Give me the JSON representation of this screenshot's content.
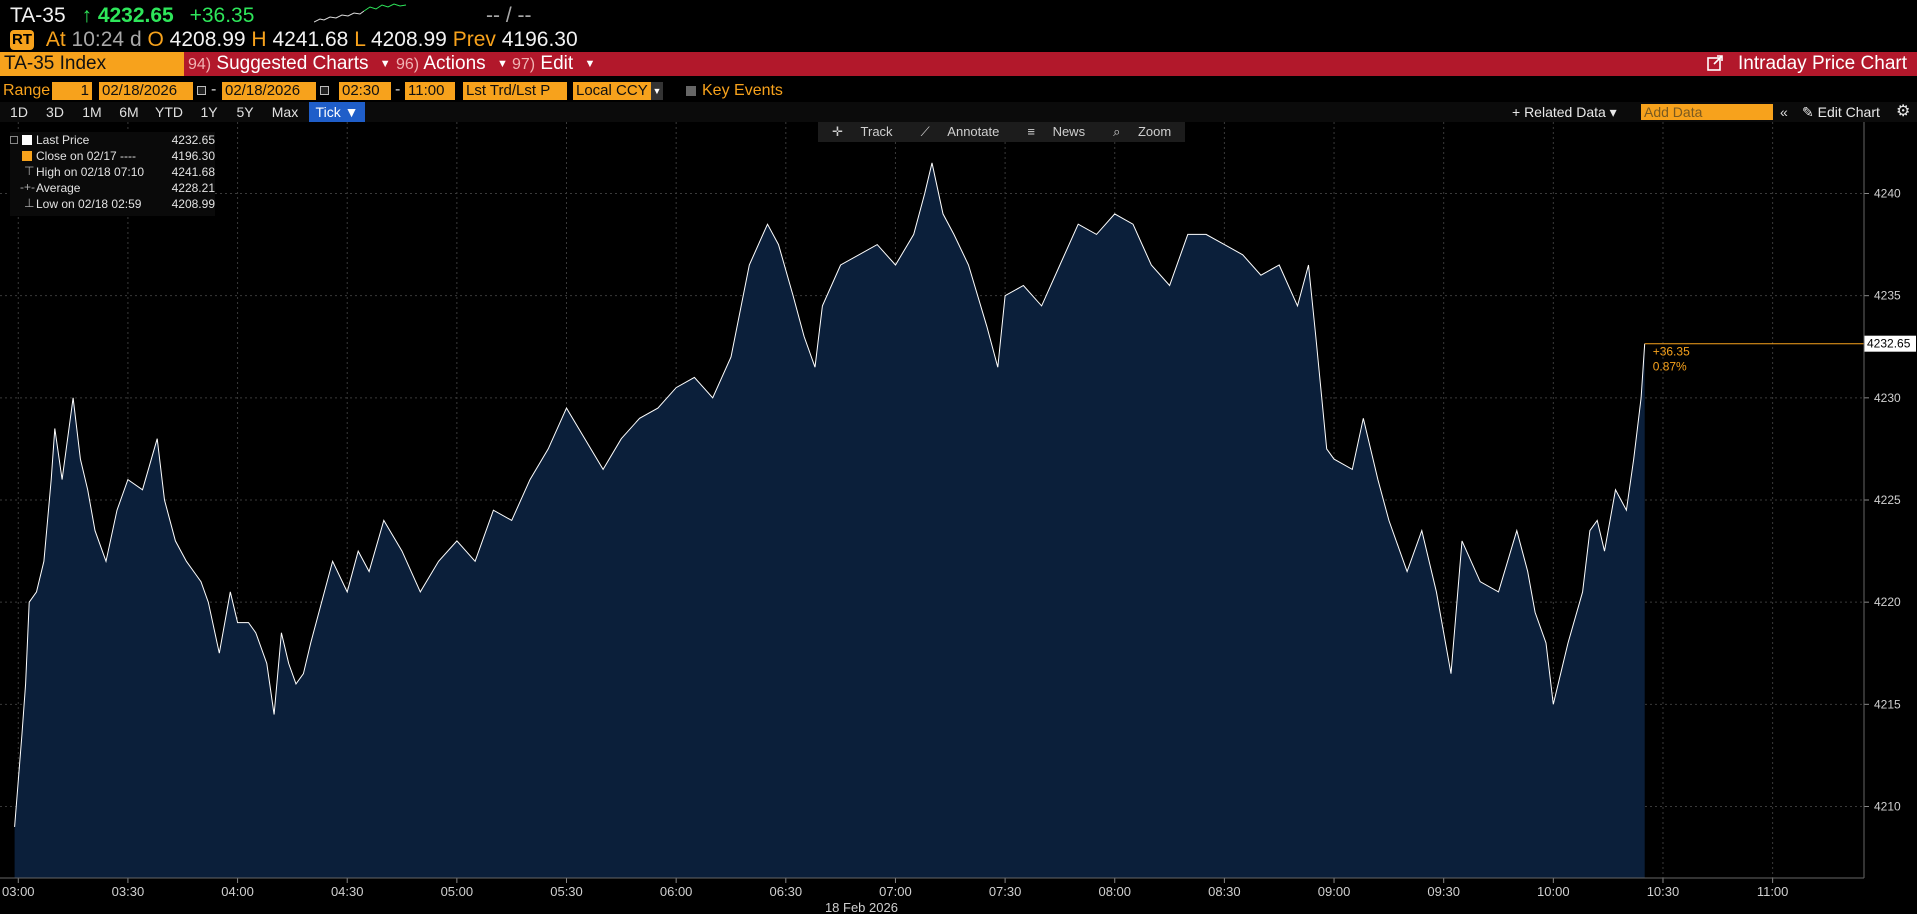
{
  "quote": {
    "ticker": "TA-35",
    "arrow": "↑",
    "last": "4232.65",
    "change": "+36.35",
    "bid_ask": "-- / --",
    "rt_badge": "RT",
    "at_label": "At",
    "time": "10:24",
    "d_label": "d",
    "open_label": "O",
    "open": "4208.99",
    "high_label": "H",
    "high": "4241.68",
    "low_label": "L",
    "low": "4208.99",
    "prev_label": "Prev",
    "prev": "4196.30"
  },
  "menubar": {
    "security": "TA-35 Index",
    "items": [
      {
        "num": "94)",
        "label": "Suggested Charts"
      },
      {
        "num": "96)",
        "label": "Actions"
      },
      {
        "num": "97)",
        "label": "Edit"
      }
    ],
    "title": "Intraday Price Chart"
  },
  "params": {
    "range_label": "Range",
    "range_value": "1",
    "start_date": "02/18/2026",
    "end_date": "02/18/2026",
    "start_time": "02:30",
    "end_time": "11:00",
    "price_type": "Lst Trd/Lst P",
    "currency": "Local CCY",
    "key_events": "Key Events"
  },
  "periods": [
    "1D",
    "3D",
    "1M",
    "6M",
    "YTD",
    "1Y",
    "5Y",
    "Max",
    "Tick ▼"
  ],
  "toolbar_right": {
    "related": "+ Related Data ▾",
    "add_data_placeholder": "Add Data",
    "edit_chart": "Edit Chart"
  },
  "chart_tools": [
    "Track",
    "Annotate",
    "News",
    "Zoom"
  ],
  "legend": [
    {
      "label": "Last Price",
      "value": "4232.65",
      "color": "#ffffff"
    },
    {
      "label": "Close on 02/17 ----",
      "value": "4196.30",
      "color": "#f7a21c"
    },
    {
      "label": "High on 02/18 07:10",
      "value": "4241.68",
      "color": ""
    },
    {
      "label": "Average",
      "value": "4228.21",
      "color": ""
    },
    {
      "label": "Low on 02/18 02:59",
      "value": "4208.99",
      "color": ""
    }
  ],
  "chart_data": {
    "type": "area",
    "title": "",
    "xlabel": "18 Feb 2026",
    "ylabel": "",
    "x_range": [
      "02:55",
      "11:25"
    ],
    "ylim": [
      4206.5,
      4243.5
    ],
    "y_ticks": [
      4210,
      4215,
      4220,
      4225,
      4230,
      4235,
      4240
    ],
    "x_ticks": [
      "03:00",
      "03:30",
      "04:00",
      "04:30",
      "05:00",
      "05:30",
      "06:00",
      "06:30",
      "07:00",
      "07:30",
      "08:00",
      "08:30",
      "09:00",
      "09:30",
      "10:00",
      "10:30",
      "11:00"
    ],
    "grid": true,
    "line_color": "#ffffff",
    "fill_color": "#0b1f3a",
    "last_price_label": "4232.65",
    "change_label": "+36.35",
    "change_pct_label": "0.87%",
    "series": [
      {
        "x": [
          "02:59",
          "03:01",
          "03:02",
          "03:03",
          "03:05",
          "03:07",
          "03:09",
          "03:10",
          "03:12",
          "03:15",
          "03:17",
          "03:19",
          "03:21",
          "03:24",
          "03:27",
          "03:30",
          "03:34",
          "03:38",
          "03:40",
          "03:43",
          "03:46",
          "03:48",
          "03:50",
          "03:52",
          "03:55",
          "03:58",
          "04:00",
          "04:03",
          "04:05",
          "04:08",
          "04:10",
          "04:12",
          "04:14",
          "04:16",
          "04:18",
          "04:20",
          "04:23",
          "04:26",
          "04:30",
          "04:33",
          "04:36",
          "04:40",
          "04:45",
          "04:50",
          "04:55",
          "05:00",
          "05:05",
          "05:10",
          "05:15",
          "05:20",
          "05:25",
          "05:30",
          "05:35",
          "05:40",
          "05:45",
          "05:50",
          "05:55",
          "06:00",
          "06:05",
          "06:10",
          "06:15",
          "06:20",
          "06:25",
          "06:28",
          "06:32",
          "06:35",
          "06:38",
          "06:40",
          "06:45",
          "06:50",
          "06:55",
          "07:00",
          "07:05",
          "07:08",
          "07:10",
          "07:13",
          "07:16",
          "07:20",
          "07:25",
          "07:28",
          "07:30",
          "07:35",
          "07:40",
          "07:45",
          "07:50",
          "07:55",
          "08:00",
          "08:05",
          "08:10",
          "08:15",
          "08:20",
          "08:25",
          "08:30",
          "08:35",
          "08:40",
          "08:45",
          "08:50",
          "08:53",
          "08:55",
          "08:58",
          "09:00",
          "09:05",
          "09:08",
          "09:12",
          "09:15",
          "09:20",
          "09:24",
          "09:28",
          "09:32",
          "09:35",
          "09:40",
          "09:45",
          "09:50",
          "09:53",
          "09:55",
          "09:58",
          "10:00",
          "10:04",
          "10:08",
          "10:10",
          "10:12",
          "10:14",
          "10:17",
          "10:20",
          "10:22",
          "10:24",
          "10:25"
        ],
        "y": [
          4209.0,
          4213.5,
          4216.0,
          4220.0,
          4220.5,
          4222.0,
          4226.0,
          4228.5,
          4226.0,
          4230.0,
          4227.0,
          4225.5,
          4223.5,
          4222.0,
          4224.5,
          4226.0,
          4225.5,
          4228.0,
          4225.0,
          4223.0,
          4222.0,
          4221.5,
          4221.0,
          4220.0,
          4217.5,
          4220.5,
          4219.0,
          4219.0,
          4218.5,
          4217.0,
          4214.5,
          4218.5,
          4217.0,
          4216.0,
          4216.5,
          4218.0,
          4220.0,
          4222.0,
          4220.5,
          4222.5,
          4221.5,
          4224.0,
          4222.5,
          4220.5,
          4222.0,
          4223.0,
          4222.0,
          4224.5,
          4224.0,
          4226.0,
          4227.5,
          4229.5,
          4228.0,
          4226.5,
          4228.0,
          4229.0,
          4229.5,
          4230.5,
          4231.0,
          4230.0,
          4232.0,
          4236.5,
          4238.5,
          4237.5,
          4235.0,
          4233.0,
          4231.5,
          4234.5,
          4236.5,
          4237.0,
          4237.5,
          4236.5,
          4238.0,
          4240.0,
          4241.5,
          4239.0,
          4238.0,
          4236.5,
          4233.5,
          4231.5,
          4235.0,
          4235.5,
          4234.5,
          4236.5,
          4238.5,
          4238.0,
          4239.0,
          4238.5,
          4236.5,
          4235.5,
          4238.0,
          4238.0,
          4237.5,
          4237.0,
          4236.0,
          4236.5,
          4234.5,
          4236.5,
          4233.0,
          4227.5,
          4227.0,
          4226.5,
          4229.0,
          4226.0,
          4224.0,
          4221.5,
          4223.5,
          4220.5,
          4216.5,
          4223.0,
          4221.0,
          4220.5,
          4223.5,
          4221.5,
          4219.5,
          4218.0,
          4215.0,
          4218.0,
          4220.5,
          4223.5,
          4224.0,
          4222.5,
          4225.5,
          4224.5,
          4227.0,
          4230.0,
          4232.65
        ]
      }
    ]
  }
}
